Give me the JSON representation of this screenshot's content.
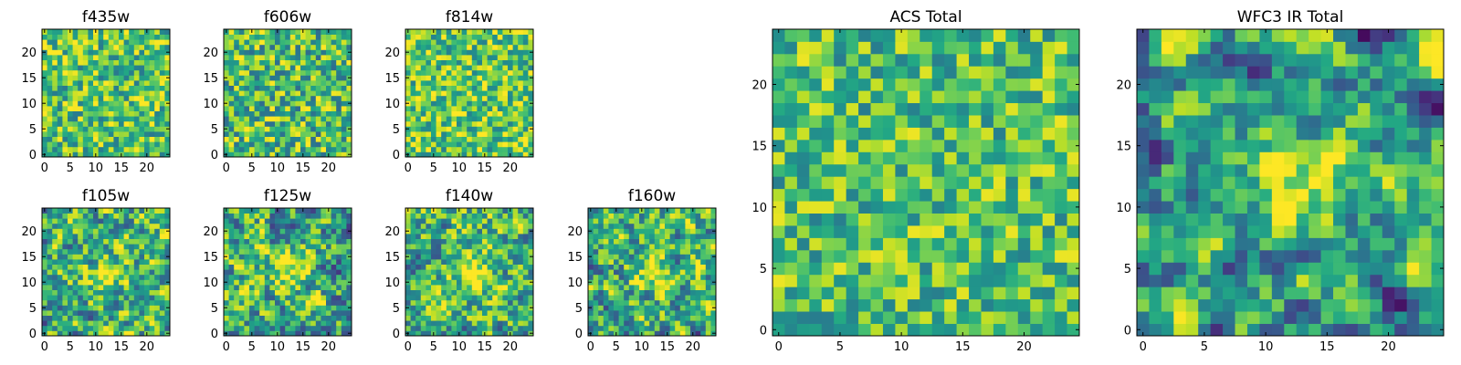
{
  "figure": {
    "description_panels": 9
  },
  "chart_data": [
    {
      "type": "heatmap",
      "title": "f435w",
      "grid_size": 25,
      "xticks": [
        0,
        5,
        10,
        15,
        20
      ],
      "yticks": [
        0,
        5,
        10,
        15,
        20
      ],
      "xlim": [
        -0.5,
        24.5
      ],
      "ylim": [
        -0.5,
        24.5
      ],
      "pattern": "noise",
      "seed": 11,
      "smooth": 0,
      "colormap": "viridis",
      "mean": 0.72,
      "spread": 0.18
    },
    {
      "type": "heatmap",
      "title": "f606w",
      "grid_size": 25,
      "xticks": [
        0,
        5,
        10,
        15,
        20
      ],
      "yticks": [
        0,
        5,
        10,
        15,
        20
      ],
      "xlim": [
        -0.5,
        24.5
      ],
      "ylim": [
        -0.5,
        24.5
      ],
      "pattern": "noise",
      "seed": 23,
      "smooth": 0,
      "colormap": "viridis",
      "mean": 0.68,
      "spread": 0.2
    },
    {
      "type": "heatmap",
      "title": "f814w",
      "grid_size": 25,
      "xticks": [
        0,
        5,
        10,
        15,
        20
      ],
      "yticks": [
        0,
        5,
        10,
        15,
        20
      ],
      "xlim": [
        -0.5,
        24.5
      ],
      "ylim": [
        -0.5,
        24.5
      ],
      "pattern": "noise",
      "seed": 37,
      "smooth": 0,
      "colormap": "viridis",
      "mean": 0.74,
      "spread": 0.18
    },
    {
      "type": "heatmap",
      "title": "f105w",
      "grid_size": 25,
      "xticks": [
        0,
        5,
        10,
        15,
        20
      ],
      "yticks": [
        0,
        5,
        10,
        15,
        20
      ],
      "xlim": [
        -0.5,
        24.5
      ],
      "ylim": [
        -0.5,
        24.5
      ],
      "pattern": "source",
      "seed": 41,
      "smooth": 1,
      "colormap": "viridis",
      "mean": 0.62,
      "spread": 0.2
    },
    {
      "type": "heatmap",
      "title": "f125w",
      "grid_size": 25,
      "xticks": [
        0,
        5,
        10,
        15,
        20
      ],
      "yticks": [
        0,
        5,
        10,
        15,
        20
      ],
      "xlim": [
        -0.5,
        24.5
      ],
      "ylim": [
        -0.5,
        24.5
      ],
      "pattern": "source",
      "seed": 53,
      "smooth": 1,
      "colormap": "viridis",
      "mean": 0.6,
      "spread": 0.22
    },
    {
      "type": "heatmap",
      "title": "f140w",
      "grid_size": 25,
      "xticks": [
        0,
        5,
        10,
        15,
        20
      ],
      "yticks": [
        0,
        5,
        10,
        15,
        20
      ],
      "xlim": [
        -0.5,
        24.5
      ],
      "ylim": [
        -0.5,
        24.5
      ],
      "pattern": "source",
      "seed": 67,
      "smooth": 1,
      "colormap": "viridis",
      "mean": 0.64,
      "spread": 0.2
    },
    {
      "type": "heatmap",
      "title": "f160w",
      "grid_size": 25,
      "xticks": [
        0,
        5,
        10,
        15,
        20
      ],
      "yticks": [
        0,
        5,
        10,
        15,
        20
      ],
      "xlim": [
        -0.5,
        24.5
      ],
      "ylim": [
        -0.5,
        24.5
      ],
      "pattern": "source",
      "seed": 79,
      "smooth": 1,
      "colormap": "viridis",
      "mean": 0.62,
      "spread": 0.2
    },
    {
      "type": "heatmap",
      "title": "ACS Total",
      "grid_size": 25,
      "xticks": [
        0,
        5,
        10,
        15,
        20
      ],
      "yticks": [
        0,
        5,
        10,
        15,
        20
      ],
      "xlim": [
        -0.5,
        24.5
      ],
      "ylim": [
        -0.5,
        24.5
      ],
      "pattern": "noise",
      "seed": 97,
      "smooth": 0,
      "colormap": "viridis",
      "mean": 0.7,
      "spread": 0.17
    },
    {
      "type": "heatmap",
      "title": "WFC3 IR Total",
      "grid_size": 25,
      "xticks": [
        0,
        5,
        10,
        15,
        20
      ],
      "yticks": [
        0,
        5,
        10,
        15,
        20
      ],
      "xlim": [
        -0.5,
        24.5
      ],
      "ylim": [
        -0.5,
        24.5
      ],
      "pattern": "source",
      "seed": 113,
      "smooth": 2,
      "colormap": "viridis",
      "mean": 0.56,
      "spread": 0.2
    }
  ]
}
